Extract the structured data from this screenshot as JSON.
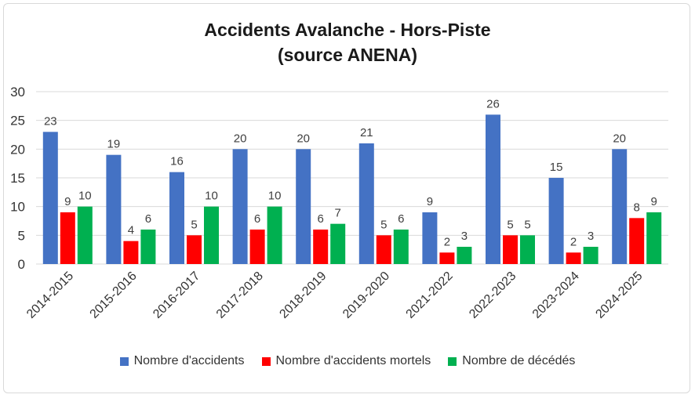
{
  "title_line1": "Accidents Avalanche - Hors-Piste",
  "title_line2": "(source ANENA)",
  "chart_data": {
    "type": "bar",
    "title": "Accidents Avalanche - Hors-Piste (source ANENA)",
    "categories": [
      "2014-2015",
      "2015-2016",
      "2016-2017",
      "2017-2018",
      "2018-2019",
      "2019-2020",
      "2021-2022",
      "2022-2023",
      "2023-2024",
      "2024-2025"
    ],
    "series": [
      {
        "name": "Nombre d'accidents",
        "color": "#4472C4",
        "values": [
          23,
          19,
          16,
          20,
          20,
          21,
          9,
          26,
          15,
          20
        ]
      },
      {
        "name": "Nombre d'accidents mortels",
        "color": "#FF0000",
        "values": [
          9,
          4,
          5,
          6,
          6,
          5,
          2,
          5,
          2,
          8
        ]
      },
      {
        "name": "Nombre de décédés",
        "color": "#00B050",
        "values": [
          10,
          6,
          10,
          10,
          7,
          6,
          3,
          5,
          3,
          9
        ]
      }
    ],
    "ylim": [
      0,
      30
    ],
    "yticks": [
      0,
      5,
      10,
      15,
      20,
      25,
      30
    ],
    "grid": true,
    "legend": "bottom",
    "xlabel": "",
    "ylabel": ""
  }
}
